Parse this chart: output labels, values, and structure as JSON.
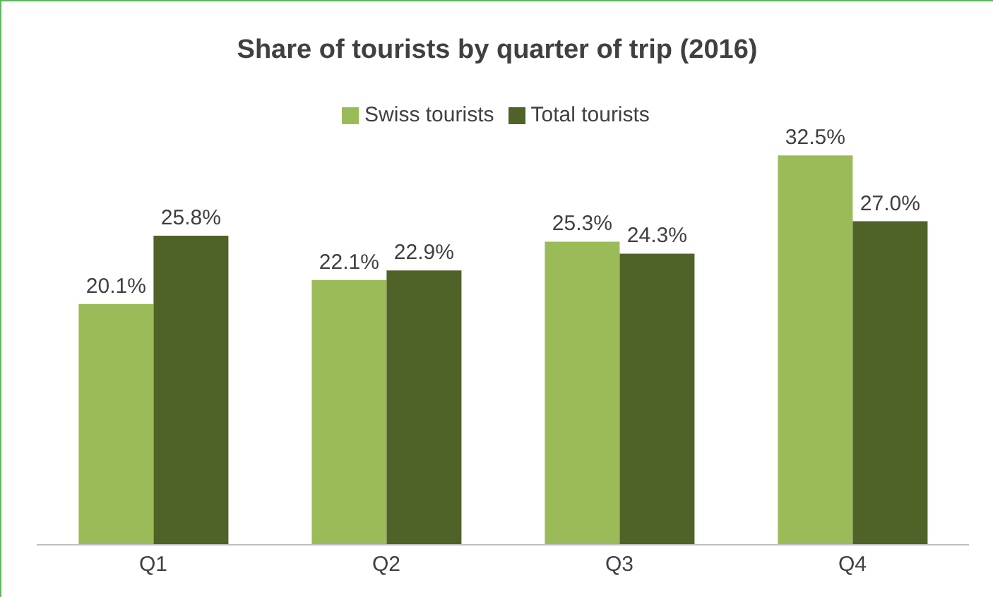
{
  "chart_data": {
    "type": "bar",
    "title": "Share of tourists by quarter of trip (2016)",
    "categories": [
      "Q1",
      "Q2",
      "Q3",
      "Q4"
    ],
    "series": [
      {
        "name": "Swiss tourists",
        "color": "#9bbb59",
        "values": [
          20.1,
          22.1,
          25.3,
          32.5
        ],
        "value_labels": [
          "20.1%",
          "22.1%",
          "25.3%",
          "32.5%"
        ]
      },
      {
        "name": "Total tourists",
        "color": "#4f6228",
        "values": [
          25.8,
          22.9,
          24.3,
          27.0
        ],
        "value_labels": [
          "25.8%",
          "22.9%",
          "24.3%",
          "27.0%"
        ]
      }
    ],
    "legend": "top",
    "grid": false
  }
}
